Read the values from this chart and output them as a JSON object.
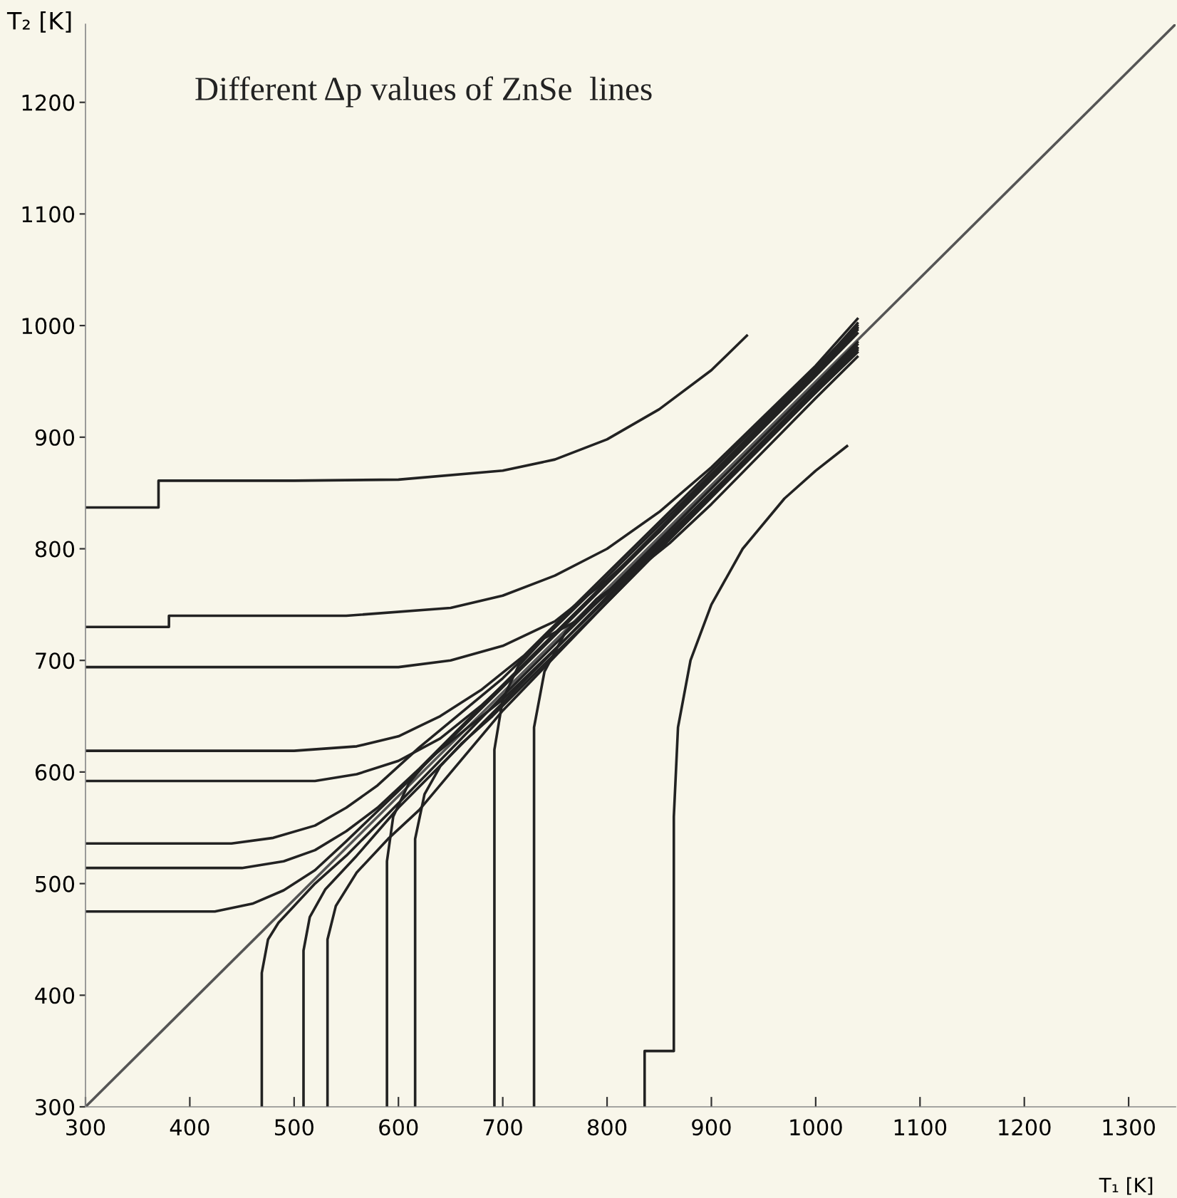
{
  "chart_data": {
    "type": "line",
    "title": "Different Δp values of ZnSe  lines",
    "xlabel": "T₁ [K]",
    "ylabel": "T₂ [K]",
    "xlim": [
      300,
      1345
    ],
    "ylim": [
      300,
      1270
    ],
    "xticks": [
      300,
      400,
      500,
      600,
      700,
      800,
      900,
      1000,
      1100,
      1200,
      1300
    ],
    "yticks": [
      300,
      400,
      500,
      600,
      700,
      800,
      900,
      1000,
      1100,
      1200
    ],
    "grid": false,
    "marker": "none",
    "line_style": "solid",
    "series": [
      {
        "color": "#555555",
        "x": [
          300,
          1345
        ],
        "values": [
          300,
          1270
        ]
      },
      {
        "color": "#222222",
        "x": [
          300,
          370,
          370,
          500,
          600,
          700,
          750,
          800,
          850,
          900,
          934
        ],
        "values": [
          837,
          837,
          861,
          861,
          862,
          870,
          880,
          898,
          925,
          960,
          991
        ]
      },
      {
        "color": "#222222",
        "x": [
          300,
          380,
          380,
          550,
          650,
          700,
          750,
          800,
          850,
          900,
          1000,
          1040
        ],
        "values": [
          730,
          730,
          740,
          740,
          747,
          758,
          776,
          800,
          833,
          873,
          964,
          1006
        ]
      },
      {
        "color": "#222222",
        "x": [
          300,
          600,
          650,
          700,
          750,
          800,
          850,
          900,
          1000,
          1040
        ],
        "values": [
          694,
          694,
          700,
          713,
          735,
          772,
          815,
          866,
          960,
          1002
        ]
      },
      {
        "color": "#222222",
        "x": [
          300,
          500,
          560,
          600,
          640,
          680,
          720,
          800,
          900,
          1000,
          1040
        ],
        "values": [
          619,
          619,
          623,
          632,
          650,
          674,
          704,
          778,
          870,
          962,
          1000
        ]
      },
      {
        "color": "#222222",
        "x": [
          300,
          520,
          560,
          600,
          640,
          680,
          720,
          800,
          900,
          1000,
          1040
        ],
        "values": [
          592,
          592,
          598,
          610,
          630,
          660,
          695,
          770,
          865,
          958,
          998
        ]
      },
      {
        "color": "#222222",
        "x": [
          300,
          440,
          480,
          520,
          550,
          580,
          620,
          700,
          800,
          900,
          1000,
          1040
        ],
        "values": [
          536,
          536,
          541,
          552,
          568,
          588,
          622,
          684,
          775,
          867,
          959,
          998
        ]
      },
      {
        "color": "#222222",
        "x": [
          300,
          450,
          490,
          520,
          550,
          580,
          620,
          700,
          800,
          900,
          1000,
          1040
        ],
        "values": [
          514,
          514,
          520,
          530,
          547,
          568,
          603,
          678,
          771,
          864,
          957,
          996
        ]
      },
      {
        "color": "#222222",
        "x": [
          300,
          424,
          460,
          490,
          520,
          550,
          600,
          700,
          800,
          900,
          1000,
          1040
        ],
        "values": [
          475,
          475,
          482,
          494,
          512,
          538,
          583,
          676,
          769,
          862,
          955,
          993
        ]
      },
      {
        "color": "#222222",
        "x": [
          469,
          469,
          475,
          485,
          500,
          520,
          550,
          600,
          700,
          800,
          900,
          1000,
          1040
        ],
        "values": [
          300,
          420,
          450,
          465,
          480,
          500,
          525,
          572,
          668,
          761,
          854,
          947,
          985
        ]
      },
      {
        "color": "#222222",
        "x": [
          509,
          509,
          515,
          530,
          560,
          600,
          700,
          800,
          900,
          1000,
          1040
        ],
        "values": [
          300,
          440,
          470,
          495,
          525,
          568,
          662,
          757,
          850,
          944,
          983
        ]
      },
      {
        "color": "#222222",
        "x": [
          532,
          532,
          540,
          560,
          590,
          620,
          700,
          800,
          900,
          1000,
          1040
        ],
        "values": [
          300,
          450,
          480,
          510,
          540,
          566,
          655,
          752,
          847,
          942,
          980
        ]
      },
      {
        "color": "#222222",
        "x": [
          589,
          589,
          595,
          610,
          630,
          660,
          700,
          800,
          900,
          1000,
          1040
        ],
        "values": [
          300,
          520,
          560,
          590,
          612,
          635,
          665,
          755,
          848,
          942,
          980
        ]
      },
      {
        "color": "#222222",
        "x": [
          616,
          616,
          625,
          640,
          660,
          690,
          720,
          800,
          900,
          1000,
          1040
        ],
        "values": [
          300,
          540,
          580,
          605,
          625,
          650,
          678,
          752,
          846,
          940,
          978
        ]
      },
      {
        "color": "#222222",
        "x": [
          692,
          692,
          700,
          715,
          740,
          770,
          800,
          900,
          1000,
          1040
        ],
        "values": [
          300,
          620,
          665,
          695,
          720,
          735,
          760,
          850,
          940,
          976
        ]
      },
      {
        "color": "#222222",
        "x": [
          730,
          730,
          740,
          760,
          790,
          820,
          860,
          900,
          1000,
          1040
        ],
        "values": [
          300,
          640,
          690,
          725,
          755,
          775,
          805,
          840,
          935,
          972
        ]
      },
      {
        "color": "#222222",
        "x": [
          836,
          836,
          864,
          864,
          868,
          880,
          900,
          930,
          970,
          1000,
          1030
        ],
        "values": [
          300,
          350,
          350,
          560,
          640,
          700,
          750,
          800,
          845,
          870,
          892
        ]
      }
    ]
  }
}
